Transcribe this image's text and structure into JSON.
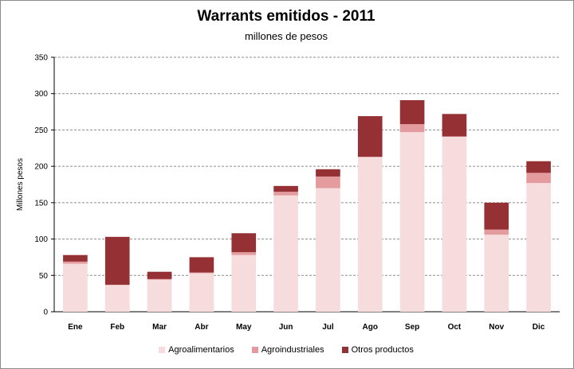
{
  "chart_data": {
    "type": "bar",
    "stacked": true,
    "title": "Warrants emitidos  - 2011",
    "subtitle": "millones de pesos",
    "ylabel": "Millones pesos",
    "xlabel": "",
    "ylim": [
      0,
      350
    ],
    "yticks": [
      0,
      50,
      100,
      150,
      200,
      250,
      300,
      350
    ],
    "grid": true,
    "legend_position": "bottom",
    "categories": [
      "Ene",
      "Feb",
      "Mar",
      "Abr",
      "May",
      "Jun",
      "Jul",
      "Ago",
      "Sep",
      "Oct",
      "Nov",
      "Dic"
    ],
    "series": [
      {
        "name": "Agroalimentarios",
        "color": "#f6dcdd",
        "values": [
          66,
          37,
          44,
          53,
          78,
          160,
          170,
          213,
          247,
          241,
          106,
          177
        ]
      },
      {
        "name": "Agroindustriales",
        "color": "#e39b9d",
        "values": [
          3,
          0,
          1,
          1,
          4,
          5,
          16,
          0,
          11,
          0,
          7,
          14
        ]
      },
      {
        "name": "Otros productos",
        "color": "#953035",
        "values": [
          9,
          66,
          10,
          21,
          26,
          8,
          10,
          56,
          33,
          31,
          37,
          16
        ]
      }
    ]
  }
}
